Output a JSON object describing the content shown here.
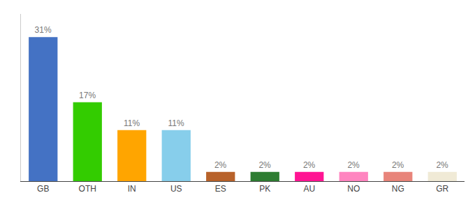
{
  "chart_data": {
    "type": "bar",
    "categories": [
      "GB",
      "OTH",
      "IN",
      "US",
      "ES",
      "PK",
      "AU",
      "NO",
      "NG",
      "GR"
    ],
    "values": [
      31,
      17,
      11,
      11,
      2,
      2,
      2,
      2,
      2,
      2
    ],
    "value_labels": [
      "31%",
      "17%",
      "11%",
      "11%",
      "2%",
      "2%",
      "2%",
      "2%",
      "2%",
      "2%"
    ],
    "colors": [
      "#4472C4",
      "#33CC00",
      "#FFA500",
      "#87CEEB",
      "#B8622A",
      "#2E7D32",
      "#FF1493",
      "#FF85C0",
      "#E8847A",
      "#F0EAD6"
    ],
    "ylim": [
      0,
      36
    ],
    "data_labels": true,
    "tick_labels": "x",
    "grid": false
  }
}
